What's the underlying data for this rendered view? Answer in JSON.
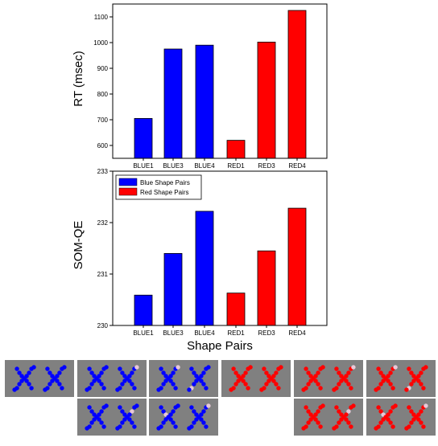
{
  "chart_data": [
    {
      "type": "bar",
      "ylabel": "RT (msec)",
      "xlabel": "",
      "ylim": [
        550,
        1150
      ],
      "yticks": [
        600,
        700,
        800,
        900,
        1000,
        1100
      ],
      "categories": [
        "BLUE1",
        "BLUE3",
        "BLUE4",
        "RED1",
        "RED3",
        "RED4"
      ],
      "values": [
        705,
        975,
        990,
        620,
        1002,
        1125
      ],
      "bar_colors": [
        "#0000ff",
        "#0000ff",
        "#0000ff",
        "#ff0000",
        "#ff0000",
        "#ff0000"
      ],
      "grid": false
    },
    {
      "type": "bar",
      "ylabel": "SOM-QE",
      "xlabel": "Shape Pairs",
      "ylim": [
        230,
        233
      ],
      "yticks": [
        230,
        231,
        232,
        233
      ],
      "categories": [
        "BLUE1",
        "BLUE3",
        "BLUE4",
        "RED1",
        "RED3",
        "RED4"
      ],
      "values": [
        230.59,
        231.4,
        232.22,
        230.63,
        231.45,
        232.28
      ],
      "bar_colors": [
        "#0000ff",
        "#0000ff",
        "#0000ff",
        "#ff0000",
        "#ff0000",
        "#ff0000"
      ],
      "legend": {
        "placement": "top-left",
        "entries": [
          {
            "name": "Blue Shape Pairs",
            "color": "#0000ff"
          },
          {
            "name": "Red Shape Pairs",
            "color": "#ff0000"
          }
        ]
      },
      "grid": false
    }
  ],
  "stimuli": {
    "background": "#808080",
    "panels": [
      {
        "color": "#0000ff",
        "highlight": "none"
      },
      {
        "color": "#0000ff",
        "highlight": "one"
      },
      {
        "color": "#0000ff",
        "highlight": "two"
      },
      {
        "color": "#ff0000",
        "highlight": "none"
      },
      {
        "color": "#ff0000",
        "highlight": "one"
      },
      {
        "color": "#ff0000",
        "highlight": "two"
      },
      {
        "color": "#0000ff",
        "highlight": "one-b"
      },
      {
        "color": "#0000ff",
        "highlight": "two-b"
      },
      {
        "color": "#ff0000",
        "highlight": "one-b"
      },
      {
        "color": "#ff0000",
        "highlight": "two-b"
      }
    ],
    "highlight_color": "#e8c8d8"
  }
}
